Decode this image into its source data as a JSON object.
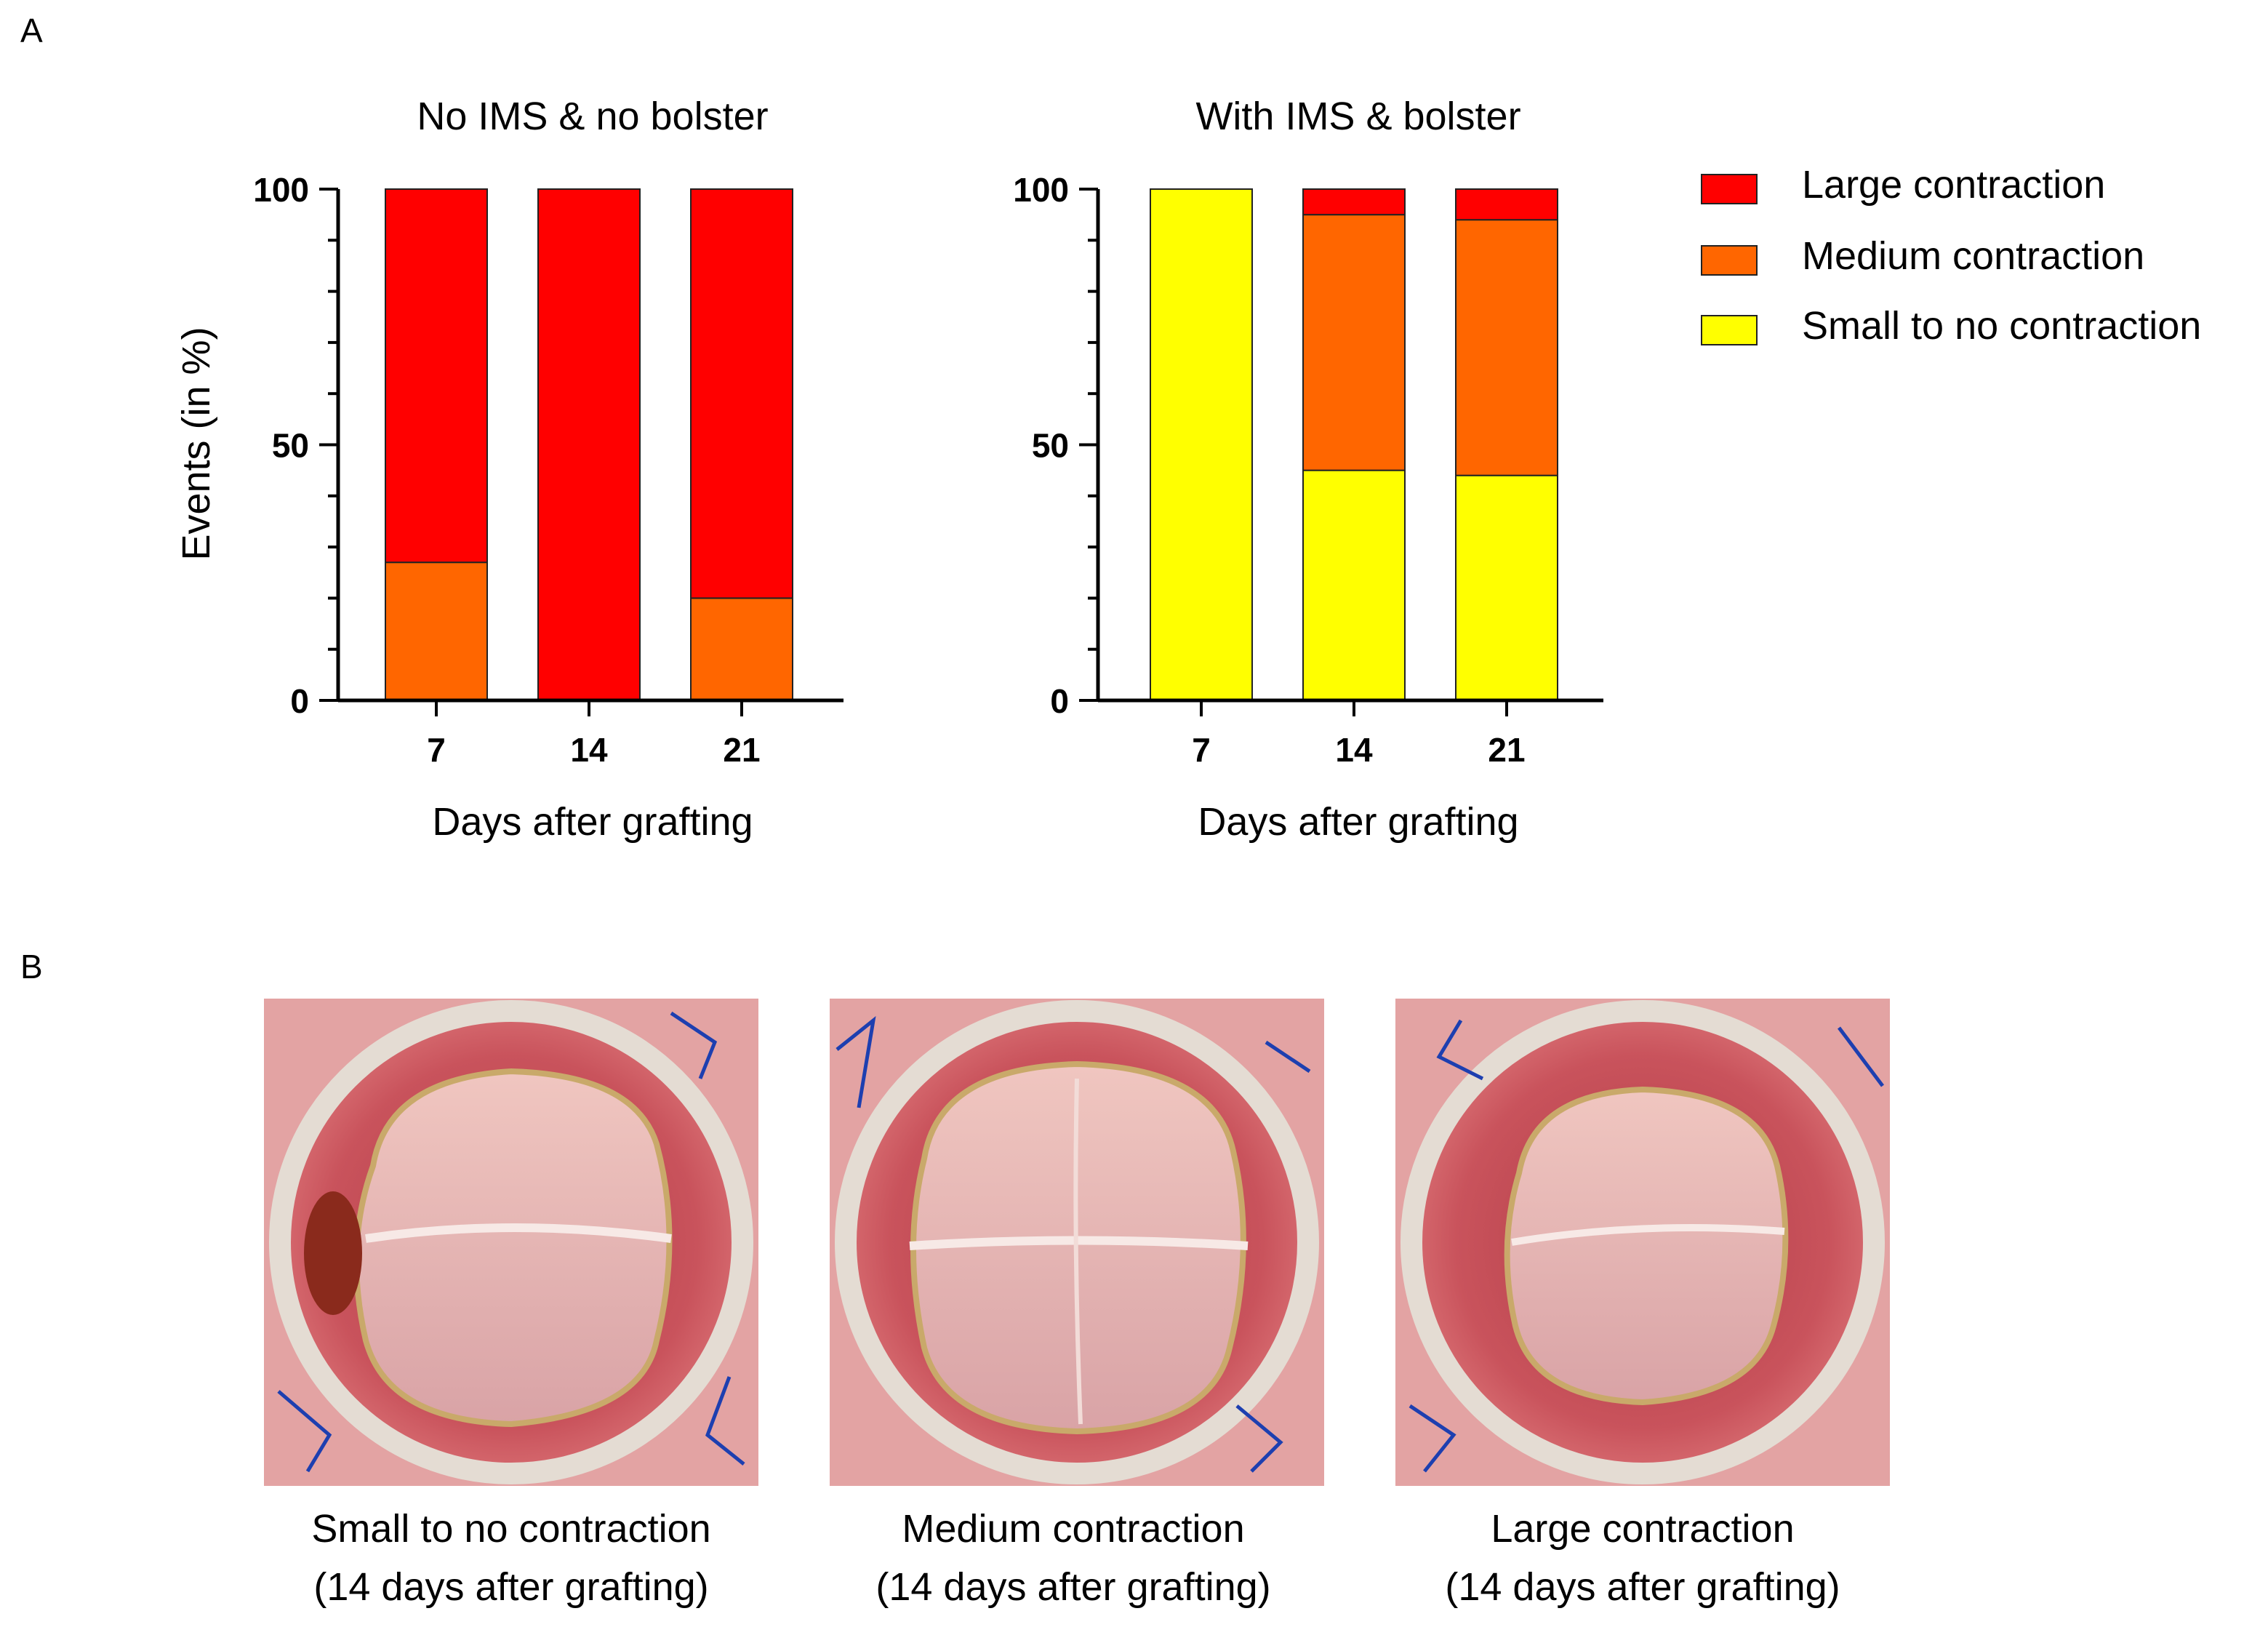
{
  "panel_labels": {
    "a": "A",
    "b": "B"
  },
  "colors": {
    "large": "#ff0000",
    "medium": "#ff6600",
    "small": "#ffff00",
    "axis": "#000000",
    "skin": "#d98a8a",
    "wound": "#c7505a",
    "graft": "#e7b5b0",
    "ring": "#ddd4cc",
    "suture": "#1d3fb0"
  },
  "legend": {
    "items": [
      {
        "label": "Large contraction",
        "color_key": "large"
      },
      {
        "label": "Medium contraction",
        "color_key": "medium"
      },
      {
        "label": "Small to no contraction",
        "color_key": "small"
      }
    ]
  },
  "chart_data": [
    {
      "type": "bar",
      "stacked": true,
      "title": "No IMS & no bolster",
      "xlabel": "Days after grafting",
      "ylabel": "Events (in %)",
      "ylim": [
        0,
        100
      ],
      "yticks": [
        0,
        50,
        100
      ],
      "categories": [
        "7",
        "14",
        "21"
      ],
      "series": [
        {
          "name": "Small to no contraction",
          "color_key": "small",
          "values": [
            0,
            0,
            0
          ]
        },
        {
          "name": "Medium contraction",
          "color_key": "medium",
          "values": [
            27,
            0,
            20
          ]
        },
        {
          "name": "Large contraction",
          "color_key": "large",
          "values": [
            73,
            100,
            80
          ]
        }
      ]
    },
    {
      "type": "bar",
      "stacked": true,
      "title": "With IMS & bolster",
      "xlabel": "Days after grafting",
      "ylabel": "",
      "ylim": [
        0,
        100
      ],
      "yticks": [
        0,
        50,
        100
      ],
      "categories": [
        "7",
        "14",
        "21"
      ],
      "series": [
        {
          "name": "Small to no contraction",
          "color_key": "small",
          "values": [
            100,
            45,
            44
          ]
        },
        {
          "name": "Medium contraction",
          "color_key": "medium",
          "values": [
            0,
            50,
            50
          ]
        },
        {
          "name": "Large contraction",
          "color_key": "large",
          "values": [
            0,
            5,
            6
          ]
        }
      ]
    }
  ],
  "photos": [
    {
      "caption_line1": "Small to no contraction",
      "caption_line2": "(14 days after grafting)"
    },
    {
      "caption_line1": "Medium  contraction",
      "caption_line2": "(14 days after grafting)"
    },
    {
      "caption_line1": "Large contraction",
      "caption_line2": "(14 days after grafting)"
    }
  ]
}
